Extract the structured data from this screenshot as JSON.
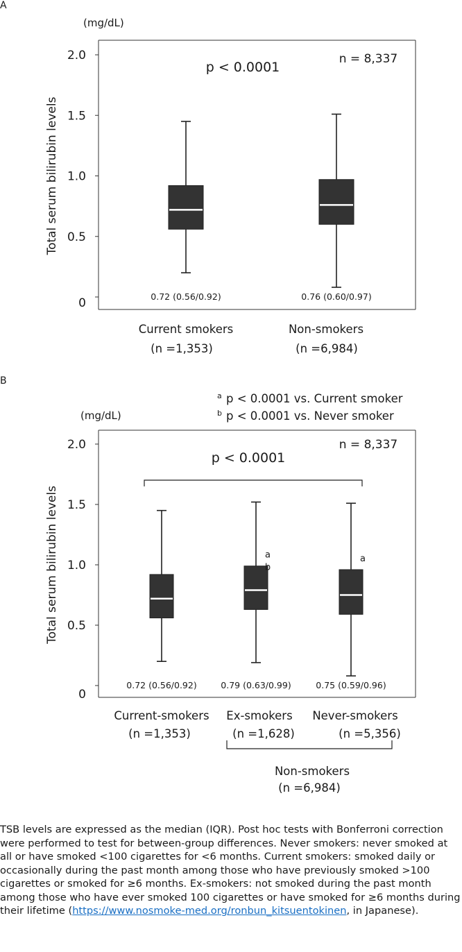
{
  "panels": [
    {
      "letter": "A",
      "unit": "(mg/dL)",
      "p_text": "p < 0.0001",
      "n_total": "n = 8,337",
      "chart_data": {
        "type": "box",
        "ylabel": "Total serum bilirubin levels",
        "ylim": [
          0,
          2.0
        ],
        "yticks": [
          "0",
          "0.5",
          "1.0",
          "1.5",
          "2.0"
        ],
        "categories": [
          {
            "name": "Current smokers",
            "n": "(n =1,353)"
          },
          {
            "name": "Non-smokers",
            "n": "(n =6,984)"
          }
        ],
        "boxes": [
          {
            "min": 0.2,
            "q1": 0.56,
            "median": 0.72,
            "q3": 0.92,
            "max": 1.45,
            "label": "0.72 (0.56/0.92)",
            "sig": []
          },
          {
            "min": 0.08,
            "q1": 0.6,
            "median": 0.76,
            "q3": 0.97,
            "max": 1.51,
            "label": "0.76 (0.60/0.97)",
            "sig": []
          }
        ]
      }
    },
    {
      "letter": "B",
      "unit": "(mg/dL)",
      "p_text": "p < 0.0001",
      "n_total": "n = 8,337",
      "legend": [
        {
          "sup": "a",
          "text": "p < 0.0001 vs. Current smoker"
        },
        {
          "sup": "b",
          "text": "p < 0.0001 vs. Never smoker"
        }
      ],
      "group_label": "Non-smokers",
      "group_n": "(n =6,984)",
      "chart_data": {
        "type": "box",
        "ylabel": "Total serum bilirubin levels",
        "ylim": [
          0,
          2.0
        ],
        "yticks": [
          "0",
          "0.5",
          "1.0",
          "1.5",
          "2.0"
        ],
        "categories": [
          {
            "name": "Current-smokers",
            "n": "(n =1,353)"
          },
          {
            "name": "Ex-smokers",
            "n": "(n =1,628)"
          },
          {
            "name": "Never-smokers",
            "n": "(n =5,356)"
          }
        ],
        "boxes": [
          {
            "min": 0.2,
            "q1": 0.56,
            "median": 0.72,
            "q3": 0.92,
            "max": 1.45,
            "label": "0.72 (0.56/0.92)",
            "sig": []
          },
          {
            "min": 0.19,
            "q1": 0.63,
            "median": 0.79,
            "q3": 0.99,
            "max": 1.52,
            "label": "0.79 (0.63/0.99)",
            "sig": [
              "a",
              "b"
            ]
          },
          {
            "min": 0.08,
            "q1": 0.59,
            "median": 0.75,
            "q3": 0.96,
            "max": 1.51,
            "label": "0.75 (0.59/0.96)",
            "sig": [
              "a"
            ]
          }
        ]
      }
    }
  ],
  "footnote": {
    "text": "TSB levels are expressed as the median (IQR). Post hoc tests with Bonferroni correction were performed to test for between-group differences. Never smokers: never smoked at all or have smoked <100 cigarettes for <6 months. Current smokers: smoked daily or occasionally during the past month among those who have previously smoked >100 cigarettes or smoked for ≥6 months. Ex-smokers: not smoked during the past month among those who have ever smoked 100 cigarettes or have smoked for ≥6 months during their lifetime (",
    "link": "https://www.nosmoke-med.org/ronbun_kitsuentokinen",
    "tail": ", in Japanese)."
  }
}
